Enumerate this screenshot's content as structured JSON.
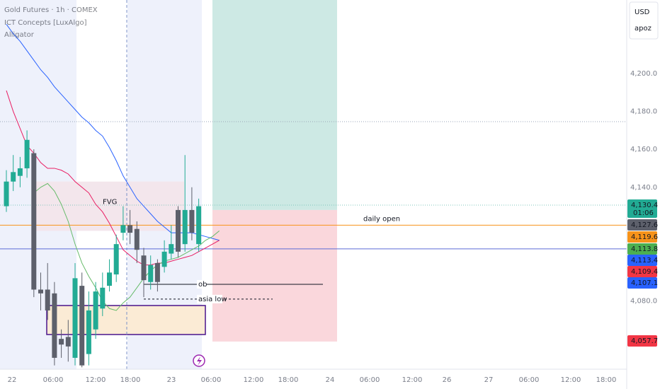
{
  "chart_data": {
    "type": "candlestick",
    "title": "Gold Futures · 1h · COMEX",
    "indicators": [
      "ICT Concepts [LuxAlgo]",
      "Alligator"
    ],
    "currency": "USD",
    "user": "apoz",
    "ylim": [
      4044,
      4238.8
    ],
    "yticks": [
      {
        "value": 4200,
        "label": "4,200.0"
      },
      {
        "value": 4180,
        "label": "4,180.0"
      },
      {
        "value": 4160,
        "label": "4,160.0"
      },
      {
        "value": 4140,
        "label": "4,140.0"
      },
      {
        "value": 4080,
        "label": "4,080.0"
      }
    ],
    "time_labels": [
      "22",
      "06:00",
      "12:00",
      "18:00",
      "23",
      "06:00",
      "12:00",
      "18:00",
      "24",
      "06:00",
      "12:00",
      "26",
      "27",
      "06:00",
      "12:00",
      "18:00"
    ],
    "up_color": "#22ab94",
    "down_color": "#5d606b",
    "open": [
      4130,
      4143,
      4146,
      4150,
      4158,
      4086,
      4086,
      4084,
      4060,
      4061,
      4050,
      4088,
      4052,
      4065,
      4076,
      4088,
      4094,
      4116,
      4120,
      4118,
      4104,
      4090,
      4100,
      4098,
      4105,
      4128,
      4110,
      4128,
      4110
    ],
    "high": [
      4149,
      4157,
      4156,
      4170,
      4160,
      4095,
      4100,
      4090,
      4065,
      4070,
      4100,
      4095,
      4085,
      4090,
      4095,
      4102,
      4115,
      4130,
      4128,
      4122,
      4108,
      4104,
      4102,
      4112,
      4120,
      4130,
      4157,
      4140,
      4134
    ],
    "low": [
      4127,
      4138,
      4140,
      4145,
      4082,
      4075,
      4070,
      4046,
      4050,
      4048,
      4046,
      4045,
      4046,
      4060,
      4072,
      4085,
      4090,
      4112,
      4110,
      4100,
      4082,
      4086,
      4085,
      4095,
      4102,
      4103,
      4106,
      4112,
      4106
    ],
    "close": [
      4143,
      4148,
      4150,
      4165,
      4086,
      4084,
      4075,
      4050,
      4057,
      4056,
      4092,
      4046,
      4075,
      4085,
      4087,
      4095,
      4110,
      4120,
      4116,
      4107,
      4091,
      4099,
      4090,
      4106,
      4110,
      4106,
      4128,
      4116,
      4130
    ],
    "series": [
      {
        "color": "#2962ff",
        "values": [
          4226,
          4221,
          4217,
          4212,
          4207,
          4202,
          4198,
          4193,
          4189,
          4185,
          4181,
          4177,
          4174,
          4170,
          4167,
          4161,
          4154,
          4146,
          4140,
          4134,
          4130,
          4126,
          4122,
          4119,
          4116,
          4116,
          4116,
          4116,
          4115,
          4114,
          4113,
          4112
        ]
      },
      {
        "color": "#e91e63",
        "values": [
          4191,
          4180,
          4171,
          4162,
          4158,
          4153,
          4150,
          4150,
          4149,
          4147,
          4143,
          4140,
          4137,
          4131,
          4127,
          4121,
          4114,
          4107,
          4104,
          4101,
          4099,
          4099,
          4100,
          4100,
          4101,
          4102,
          4103,
          4104,
          4106,
          4108,
          4110,
          4112
        ]
      },
      {
        "color": "#66bb6a",
        "values": [
          null,
          null,
          null,
          null,
          4137,
          4140,
          4142,
          4138,
          4131,
          4122,
          4110,
          4100,
          4093,
          4087,
          4080,
          4076,
          4075,
          4079,
          4082,
          4087,
          4092,
          4096,
          4099,
          4101,
          4102,
          4103,
          4105,
          4107,
          4109,
          4112,
          4114,
          4117
        ]
      }
    ],
    "levels": [
      {
        "label": "daily open",
        "value": 4120,
        "color": "#f7931a"
      },
      {
        "value": 4107.5,
        "color": "#5b6bd6"
      },
      {
        "label": "ob",
        "value": 4088.8,
        "color": "#131722"
      },
      {
        "label": "asia low",
        "value": 4081,
        "color": "#131722"
      }
    ],
    "zones": [
      {
        "name": "target",
        "top": 4238.8,
        "bottom": 4128,
        "color": "#cde9e4"
      },
      {
        "name": "stop",
        "top": 4128,
        "bottom": 4058.6,
        "color": "#fad7dc"
      },
      {
        "label": "FVG",
        "top": 4143,
        "bottom": 4117,
        "color": "#f3e6ec"
      },
      {
        "name": "asia-range",
        "top": 4077.6,
        "bottom": 4062.3,
        "color": "#fbebd5"
      }
    ],
    "price_labels": [
      {
        "label": "4,130.4",
        "sub": "01:06",
        "color": "#22ab94"
      },
      {
        "label": "4,127.6",
        "color": "#5d606b"
      },
      {
        "label": "4,119.6",
        "color": "#f7931a"
      },
      {
        "label": "4,113.8",
        "color": "#4caf50"
      },
      {
        "label": "4,113.4",
        "color": "#2962ff"
      },
      {
        "label": "4,109.4",
        "color": "#f23645"
      },
      {
        "label": "4,107.1",
        "color": "#2962ff"
      },
      {
        "label": "4,057.7",
        "color": "#f23645"
      }
    ]
  }
}
